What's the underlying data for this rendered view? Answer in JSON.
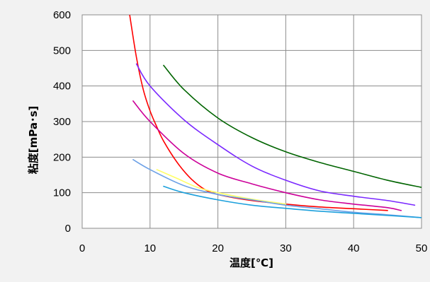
{
  "chart_data": {
    "type": "line",
    "title": "",
    "xlabel": "温度[℃]",
    "ylabel": "粘度[mPa･s]",
    "xlim": [
      0,
      50
    ],
    "ylim": [
      0,
      600
    ],
    "xticks": [
      0,
      10,
      20,
      30,
      40,
      50
    ],
    "yticks": [
      0,
      100,
      200,
      300,
      400,
      500,
      600
    ],
    "grid": true,
    "legend": "none",
    "series": [
      {
        "color": "#ff0000",
        "x": [
          7,
          8,
          9,
          10,
          11,
          12,
          14,
          16,
          18,
          20,
          25,
          30,
          35,
          40,
          45
        ],
        "y": [
          600,
          480,
          390,
          330,
          285,
          245,
          185,
          140,
          110,
          95,
          78,
          68,
          60,
          55,
          50
        ]
      },
      {
        "color": "#006400",
        "x": [
          12,
          15,
          20,
          25,
          30,
          35,
          40,
          45,
          50
        ],
        "y": [
          458,
          390,
          310,
          255,
          215,
          185,
          160,
          135,
          115
        ]
      },
      {
        "color": "#7a28ff",
        "x": [
          8,
          10,
          15,
          20,
          25,
          30,
          35,
          40,
          45,
          49
        ],
        "y": [
          462,
          400,
          305,
          235,
          175,
          135,
          105,
          90,
          78,
          65
        ]
      },
      {
        "color": "#cc0099",
        "x": [
          7.5,
          10,
          15,
          20,
          25,
          30,
          35,
          40,
          45,
          47
        ],
        "y": [
          358,
          300,
          210,
          155,
          125,
          100,
          80,
          68,
          58,
          50
        ]
      },
      {
        "color": "#ffff66",
        "x": [
          11,
          14,
          17,
          20,
          25,
          30
        ],
        "y": [
          165,
          140,
          115,
          100,
          82,
          68
        ]
      },
      {
        "color": "#6ca0e6",
        "x": [
          7.5,
          10,
          15,
          20,
          25,
          30,
          35,
          40,
          45,
          50
        ],
        "y": [
          193,
          165,
          120,
          95,
          80,
          65,
          55,
          45,
          38,
          30
        ]
      },
      {
        "color": "#1ca0dc",
        "x": [
          12,
          15,
          20,
          25,
          30,
          35,
          40,
          45,
          50
        ],
        "y": [
          118,
          100,
          80,
          65,
          56,
          48,
          42,
          36,
          30
        ]
      }
    ]
  }
}
